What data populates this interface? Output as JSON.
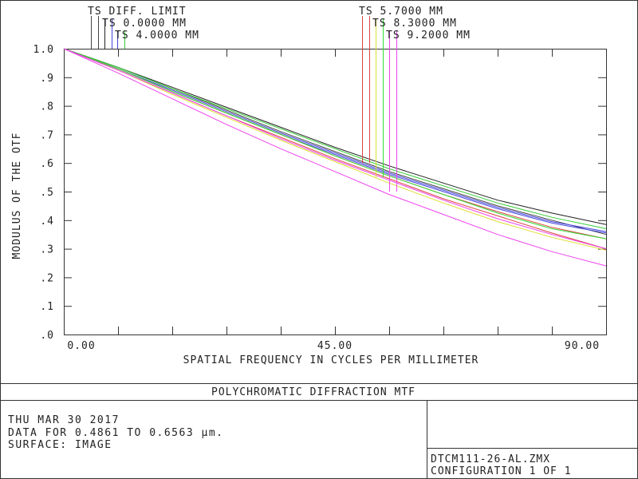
{
  "chart_data": {
    "type": "line",
    "title": "POLYCHROMATIC DIFFRACTION MTF",
    "xlabel": "SPATIAL FREQUENCY IN CYCLES PER MILLIMETER",
    "ylabel": "MODULUS OF THE OTF",
    "xlim": [
      0,
      90
    ],
    "ylim": [
      0,
      1
    ],
    "x_ticks": [
      0,
      45,
      90
    ],
    "x_tick_labels": [
      "0.00",
      "45.00",
      "90.00"
    ],
    "y_ticks": [
      0,
      0.1,
      0.2,
      0.3,
      0.4,
      0.5,
      0.6,
      0.7,
      0.8,
      0.9,
      1.0
    ],
    "y_tick_labels": [
      ".0",
      ".1",
      ".2",
      ".3",
      ".4",
      ".5",
      ".6",
      ".7",
      ".8",
      ".9",
      "1.0"
    ],
    "x_grid": [
      9,
      18,
      27,
      36,
      45,
      54,
      63,
      72,
      81,
      90
    ],
    "y_grid": [
      0.1,
      0.2,
      0.3,
      0.4,
      0.5,
      0.6,
      0.7,
      0.8,
      0.9,
      1.0
    ],
    "grid": true,
    "x": [
      0,
      9,
      18,
      27,
      36,
      45,
      54,
      63,
      72,
      81,
      90
    ],
    "series": [
      {
        "name": "DIFF. LIMIT",
        "color": "#444444",
        "values": [
          1.0,
          0.935,
          0.86,
          0.785,
          0.71,
          0.64,
          0.57,
          0.51,
          0.45,
          0.4,
          0.35
        ]
      },
      {
        "name": "TS 0.0000 MM (T)",
        "color": "#222222",
        "values": [
          1.0,
          0.935,
          0.865,
          0.795,
          0.725,
          0.655,
          0.59,
          0.53,
          0.47,
          0.425,
          0.385
        ]
      },
      {
        "name": "TS 0.0000 MM (S)",
        "color": "#4444dd",
        "values": [
          1.0,
          0.93,
          0.85,
          0.775,
          0.7,
          0.63,
          0.56,
          0.5,
          0.44,
          0.39,
          0.355
        ]
      },
      {
        "name": "TS 4.0000 MM (T)",
        "color": "#4444dd",
        "values": [
          1.0,
          0.93,
          0.855,
          0.78,
          0.705,
          0.635,
          0.565,
          0.505,
          0.445,
          0.395,
          0.36
        ]
      },
      {
        "name": "TS 4.0000 MM (S)",
        "color": "#33cc33",
        "values": [
          1.0,
          0.935,
          0.86,
          0.79,
          0.72,
          0.65,
          0.58,
          0.52,
          0.46,
          0.41,
          0.37
        ]
      },
      {
        "name": "TS 5.7000 MM (T)",
        "color": "#dd4444",
        "values": [
          1.0,
          0.93,
          0.85,
          0.775,
          0.7,
          0.625,
          0.555,
          0.49,
          0.43,
          0.375,
          0.335
        ]
      },
      {
        "name": "TS 5.7000 MM (S)",
        "color": "#dd4444",
        "values": [
          1.0,
          0.925,
          0.845,
          0.765,
          0.69,
          0.615,
          0.545,
          0.475,
          0.415,
          0.355,
          0.3
        ]
      },
      {
        "name": "TS 8.3000 MM (T)",
        "color": "#dddd33",
        "values": [
          1.0,
          0.925,
          0.84,
          0.76,
          0.68,
          0.605,
          0.53,
          0.46,
          0.395,
          0.34,
          0.295
        ]
      },
      {
        "name": "TS 8.3000 MM (S)",
        "color": "#33dd33",
        "values": [
          1.0,
          0.93,
          0.85,
          0.775,
          0.7,
          0.625,
          0.555,
          0.49,
          0.425,
          0.37,
          0.335
        ]
      },
      {
        "name": "TS 9.2000 MM (T)",
        "color": "#ee44ee",
        "values": [
          1.0,
          0.915,
          0.825,
          0.735,
          0.65,
          0.57,
          0.49,
          0.42,
          0.35,
          0.29,
          0.24
        ]
      },
      {
        "name": "TS 9.2000 MM (S)",
        "color": "#ee44ee",
        "values": [
          1.0,
          0.925,
          0.845,
          0.765,
          0.685,
          0.61,
          0.54,
          0.47,
          0.405,
          0.35,
          0.3
        ]
      }
    ],
    "legend": {
      "labels": [
        "TS DIFF. LIMIT",
        "TS 0.0000 MM",
        "TS 4.0000 MM",
        "TS 5.7000 MM",
        "TS 8.3000 MM",
        "TS 9.2000 MM"
      ],
      "marker_pairs": [
        {
          "colors": [
            "#444444",
            "#444444"
          ]
        },
        {
          "colors": [
            "#222222",
            "#4444dd"
          ]
        },
        {
          "colors": [
            "#4444dd",
            "#33cc33"
          ]
        },
        {
          "colors": [
            "#dd4444",
            "#dd4444"
          ]
        },
        {
          "colors": [
            "#dddd33",
            "#33dd33"
          ]
        },
        {
          "colors": [
            "#ee44ee",
            "#ee44ee"
          ]
        }
      ],
      "marker_end_values": [
        1.0,
        1.0,
        1.0,
        0.6,
        0.55,
        0.5
      ]
    }
  },
  "info": {
    "date": "THU MAR 30 2017",
    "data_range": "DATA FOR 0.4861 TO 0.6563 µm.",
    "surface": "SURFACE: IMAGE",
    "file": "DTCM111-26-AL.ZMX",
    "configuration": "CONFIGURATION 1 OF 1"
  }
}
